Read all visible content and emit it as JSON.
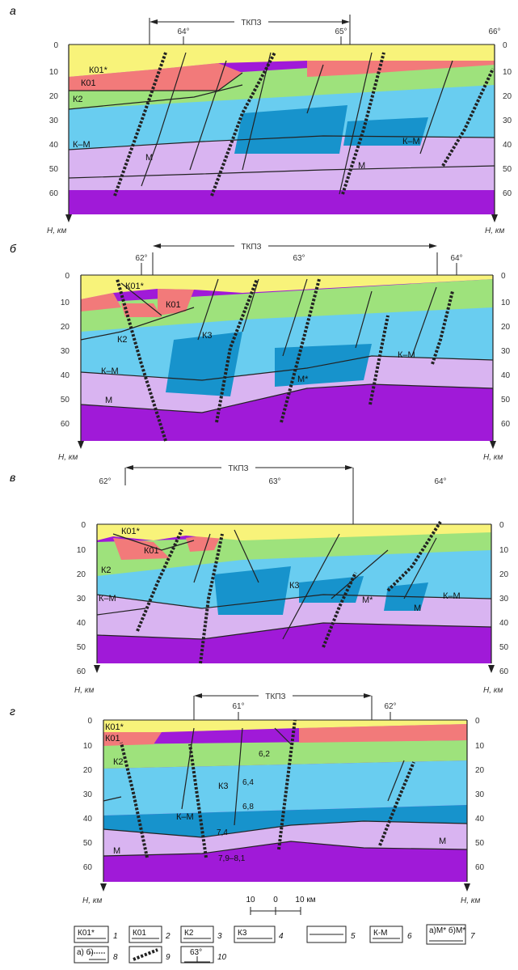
{
  "panels": [
    {
      "letter": "а",
      "tkpz": "ТКПЗ",
      "long": [
        "64°",
        "65°",
        "66°"
      ],
      "depth": [
        "0",
        "10",
        "20",
        "30",
        "40",
        "50",
        "60"
      ],
      "axis": "H, км",
      "layers": [
        "К01*",
        "К01",
        "К2",
        "К–М",
        "М",
        "К–М",
        "М"
      ]
    },
    {
      "letter": "б",
      "tkpz": "ТКПЗ",
      "long": [
        "62°",
        "63°",
        "64°"
      ],
      "depth": [
        "0",
        "10",
        "20",
        "30",
        "40",
        "50",
        "60"
      ],
      "axis": "H, км",
      "layers": [
        "К01*",
        "К01",
        "К2",
        "К3",
        "К–М",
        "М",
        "К–М",
        "М*"
      ]
    },
    {
      "letter": "в",
      "tkpz": "ТКПЗ",
      "long": [
        "62°",
        "63°",
        "64°"
      ],
      "depth": [
        "0",
        "10",
        "20",
        "30",
        "40",
        "50",
        "60"
      ],
      "axis": "H, км",
      "layers": [
        "К01*",
        "К01",
        "К2",
        "К–М",
        "К3",
        "М*",
        "М",
        "К–М"
      ]
    },
    {
      "letter": "г",
      "tkpz": "ТКПЗ",
      "long": [
        "61°",
        "62°"
      ],
      "depth": [
        "0",
        "10",
        "20",
        "30",
        "40",
        "50",
        "60"
      ],
      "axis": "H, км",
      "layers": [
        "К01*",
        "К01",
        "К2",
        "К3",
        "К–М",
        "М",
        "М"
      ],
      "velocities": [
        "6,2",
        "6,4",
        "6,8",
        "7,4",
        "7,9–8,1"
      ]
    }
  ],
  "scale": {
    "left": "10",
    "mid": "0",
    "right": "10 км"
  },
  "legend": [
    {
      "label": "К01*",
      "num": "1"
    },
    {
      "label": "К01",
      "num": "2"
    },
    {
      "label": "К2",
      "num": "3"
    },
    {
      "label": "К3",
      "num": "4"
    },
    {
      "label": "",
      "num": "5"
    },
    {
      "label": "К-М",
      "num": "6"
    },
    {
      "label": "а)М* б)М*",
      "num": "7"
    },
    {
      "label": "а) б)",
      "num": "8"
    },
    {
      "label": "",
      "num": "9"
    },
    {
      "label": "63°",
      "num": "10"
    }
  ],
  "colors": {
    "k01s": "#f8f37a",
    "k01": "#f27a7a",
    "k2": "#9ee27c",
    "k3": "#69cdf0",
    "km": "#1793cc",
    "mstar": "#d9b4f1",
    "m": "#a01ad8"
  }
}
